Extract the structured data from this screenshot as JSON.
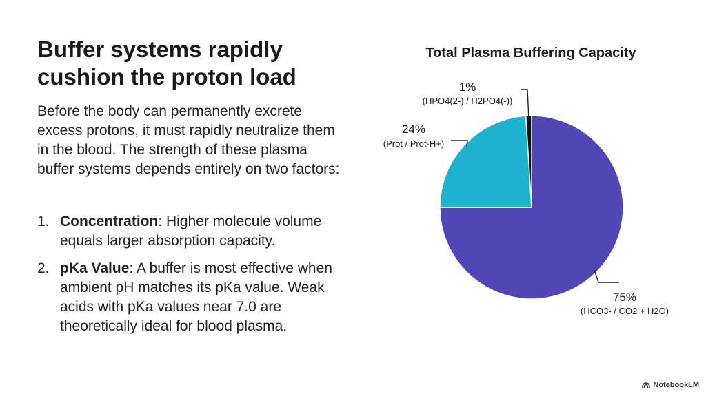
{
  "slide": {
    "title_line1": "Buffer systems rapidly",
    "title_line2": "cushion the proton load",
    "intro": "Before the body can permanently excrete excess protons, it must rapidly neutralize them in the blood. The strength of these plasma buffer systems depends entirely on two factors:",
    "points": [
      {
        "num": "1.",
        "term": "Concentration",
        "text": ": Higher molecule volume equals larger absorption capacity."
      },
      {
        "num": "2.",
        "term": "pKa Value",
        "text": ": A buffer is most effective when ambient pH matches its pKa value. Weak acids with pKa values near 7.0 are theoretically ideal for blood plasma."
      }
    ],
    "brand": "NotebookLM"
  },
  "chart_data": {
    "type": "pie",
    "title": "Total Plasma Buffering Capacity",
    "slices": [
      {
        "value": 75,
        "label": "75%",
        "name": "(HCO3- / CO2 + H2O)",
        "color": "#5146b5"
      },
      {
        "value": 24,
        "label": "24%",
        "name": "(Prot / Prot·H+)",
        "color": "#1cb2d0"
      },
      {
        "value": 1,
        "label": "1%",
        "name": "(HPO4(2-) / H2PO4(-))",
        "color": "#111111"
      }
    ],
    "start": "12 o'clock",
    "direction": "clockwise",
    "legend": "none"
  }
}
